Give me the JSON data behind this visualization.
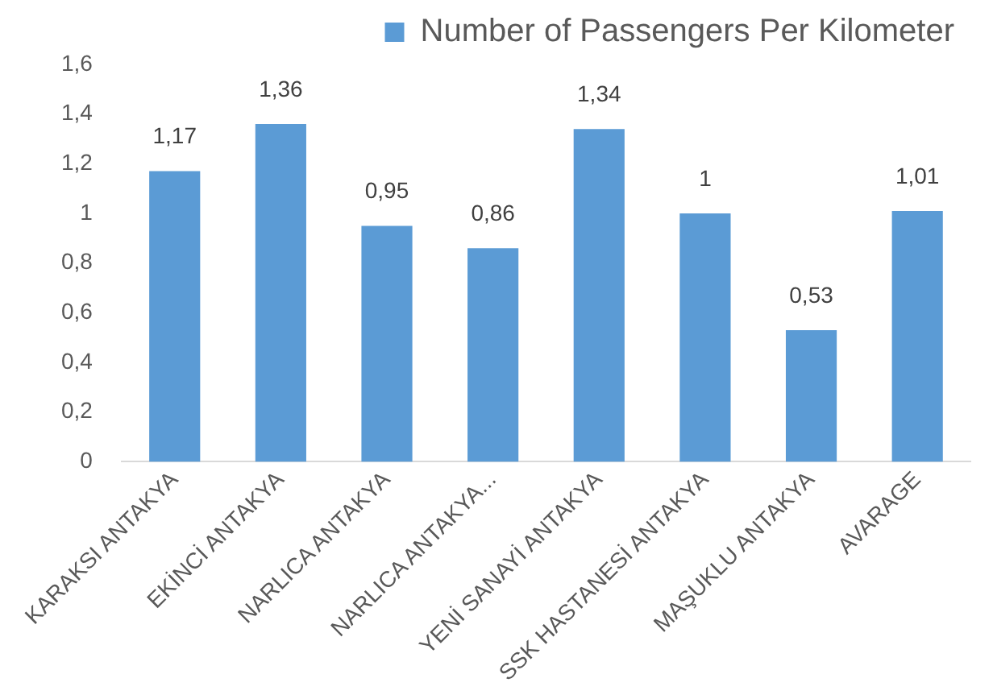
{
  "chart_data": {
    "type": "bar",
    "categories": [
      "KARAKSI ANTAKYA",
      "EKİNCİ ANTAKYA",
      "NARLICA ANTAKYA",
      "NARLICA ANTAKYA...",
      "YENİ SANAYİ ANTAKYA",
      "SSK HASTANESİ ANTAKYA",
      "MAŞUKLU ANTAKYA",
      "AVARAGE"
    ],
    "series": [
      {
        "name": "Number of Passengers Per Kilometer",
        "color": "#5b9bd5",
        "values": [
          1.17,
          1.36,
          0.95,
          0.86,
          1.34,
          1,
          0.53,
          1.01
        ],
        "value_labels": [
          "1,17",
          "1,36",
          "0,95",
          "0,86",
          "1,34",
          "1",
          "0,53",
          "1,01"
        ]
      }
    ],
    "ylim": [
      0,
      1.6
    ],
    "yticks": [
      {
        "value": 0,
        "label": "0"
      },
      {
        "value": 0.2,
        "label": "0,2"
      },
      {
        "value": 0.4,
        "label": "0,4"
      },
      {
        "value": 0.6,
        "label": "0,6"
      },
      {
        "value": 0.8,
        "label": "0,8"
      },
      {
        "value": 1,
        "label": "1"
      },
      {
        "value": 1.2,
        "label": "1,2"
      },
      {
        "value": 1.4,
        "label": "1,4"
      },
      {
        "value": 1.6,
        "label": "1,6"
      }
    ],
    "grid": false,
    "legend": "top right"
  }
}
